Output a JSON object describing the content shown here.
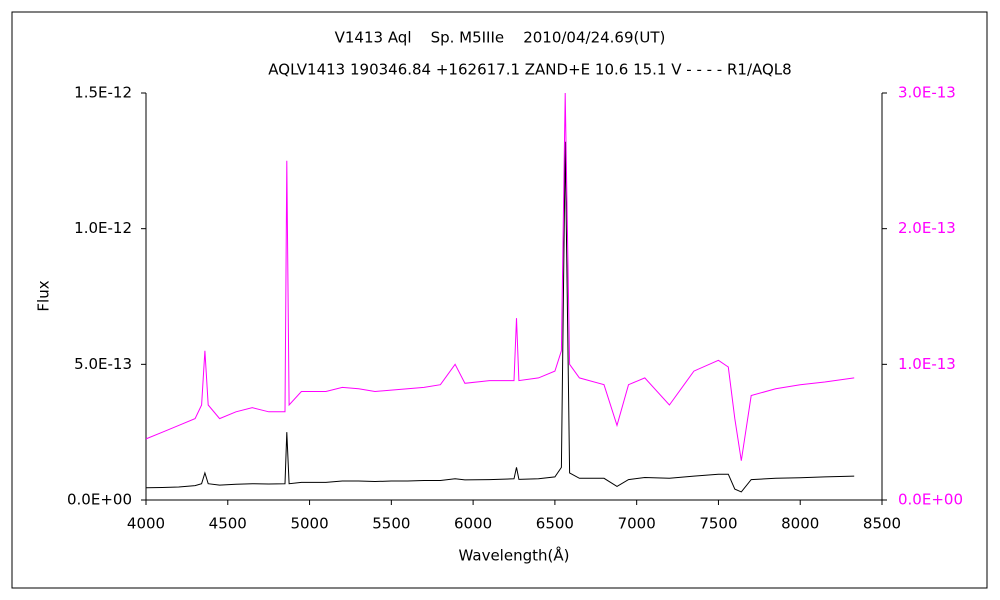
{
  "chart_data": {
    "type": "line",
    "title": "V1413 Aql    Sp. M5IIIe    2010/04/24.69(UT)",
    "subtitle": "AQLV1413 190346.84 +162617.1 ZAND+E 10.6 15.1 V - - - - R1/AQL8",
    "x_label": "Wavelength(Å)",
    "y_label": "Flux",
    "x": [
      4000,
      4100,
      4200,
      4300,
      4340,
      4360,
      4380,
      4450,
      4550,
      4650,
      4750,
      4850,
      4861,
      4875,
      4950,
      5000,
      5100,
      5200,
      5300,
      5400,
      5500,
      5600,
      5700,
      5800,
      5890,
      5950,
      6100,
      6250,
      6265,
      6280,
      6400,
      6500,
      6540,
      6563,
      6590,
      6650,
      6800,
      6880,
      6950,
      7050,
      7200,
      7350,
      7500,
      7560,
      7600,
      7640,
      7700,
      7850,
      8000,
      8150,
      8330
    ],
    "series": [
      {
        "color": "#000000",
        "axis": "y",
        "values": [
          4.5e-14,
          4.6e-14,
          4.8e-14,
          5.3e-14,
          6e-14,
          1e-13,
          6e-14,
          5.5e-14,
          5.8e-14,
          6e-14,
          5.9e-14,
          6e-14,
          2.5e-13,
          6e-14,
          6.5e-14,
          6.5e-14,
          6.5e-14,
          7e-14,
          7e-14,
          6.8e-14,
          7e-14,
          7e-14,
          7.2e-14,
          7.2e-14,
          7.8e-14,
          7.4e-14,
          7.5e-14,
          7.8e-14,
          1.2e-13,
          7.6e-14,
          7.8e-14,
          8.5e-14,
          1.2e-13,
          1.32e-12,
          1e-13,
          8e-14,
          8e-14,
          5e-14,
          7.5e-14,
          8.3e-14,
          8e-14,
          8.8e-14,
          9.5e-14,
          9.5e-14,
          4e-14,
          3e-14,
          7.5e-14,
          8e-14,
          8.2e-14,
          8.5e-14,
          8.8e-14
        ]
      },
      {
        "color": "#ff00ff",
        "axis": "y2",
        "values": [
          4.5e-14,
          5e-14,
          5.5e-14,
          6e-14,
          7e-14,
          1.1e-13,
          7e-14,
          6e-14,
          6.5e-14,
          6.8e-14,
          6.5e-14,
          6.5e-14,
          2.5e-13,
          7e-14,
          8e-14,
          8e-14,
          8e-14,
          8.3e-14,
          8.2e-14,
          8e-14,
          8.1e-14,
          8.2e-14,
          8.3e-14,
          8.5e-14,
          1e-13,
          8.6e-14,
          8.8e-14,
          8.8e-14,
          1.34e-13,
          8.8e-14,
          9e-14,
          9.5e-14,
          1.1e-13,
          3e-13,
          1e-13,
          9e-14,
          8.5e-14,
          5.5e-14,
          8.5e-14,
          9e-14,
          7e-14,
          9.5e-14,
          1.03e-13,
          9.8e-14,
          6e-14,
          2.9e-14,
          7.7e-14,
          8.2e-14,
          8.5e-14,
          8.7e-14,
          9e-14
        ]
      }
    ],
    "xlim": [
      4000,
      8500
    ],
    "xticks": [
      4000,
      4500,
      5000,
      5500,
      6000,
      6500,
      7000,
      7500,
      8000,
      8500
    ],
    "ylim": [
      0,
      1.5e-12
    ],
    "yticks": [
      {
        "value": 0,
        "label": "0.0E+00"
      },
      {
        "value": 5e-13,
        "label": "5.0E-13"
      },
      {
        "value": 1e-12,
        "label": "1.0E-12"
      },
      {
        "value": 1.5e-12,
        "label": "1.5E-12"
      }
    ],
    "y2lim": [
      0,
      3e-13
    ],
    "y2ticks": [
      {
        "value": 0,
        "label": "0.0E+00"
      },
      {
        "value": 1e-13,
        "label": "1.0E-13"
      },
      {
        "value": 2e-13,
        "label": "2.0E-13"
      },
      {
        "value": 3e-13,
        "label": "3.0E-13"
      }
    ],
    "y2_color": "#ff00ff",
    "grid": false
  }
}
